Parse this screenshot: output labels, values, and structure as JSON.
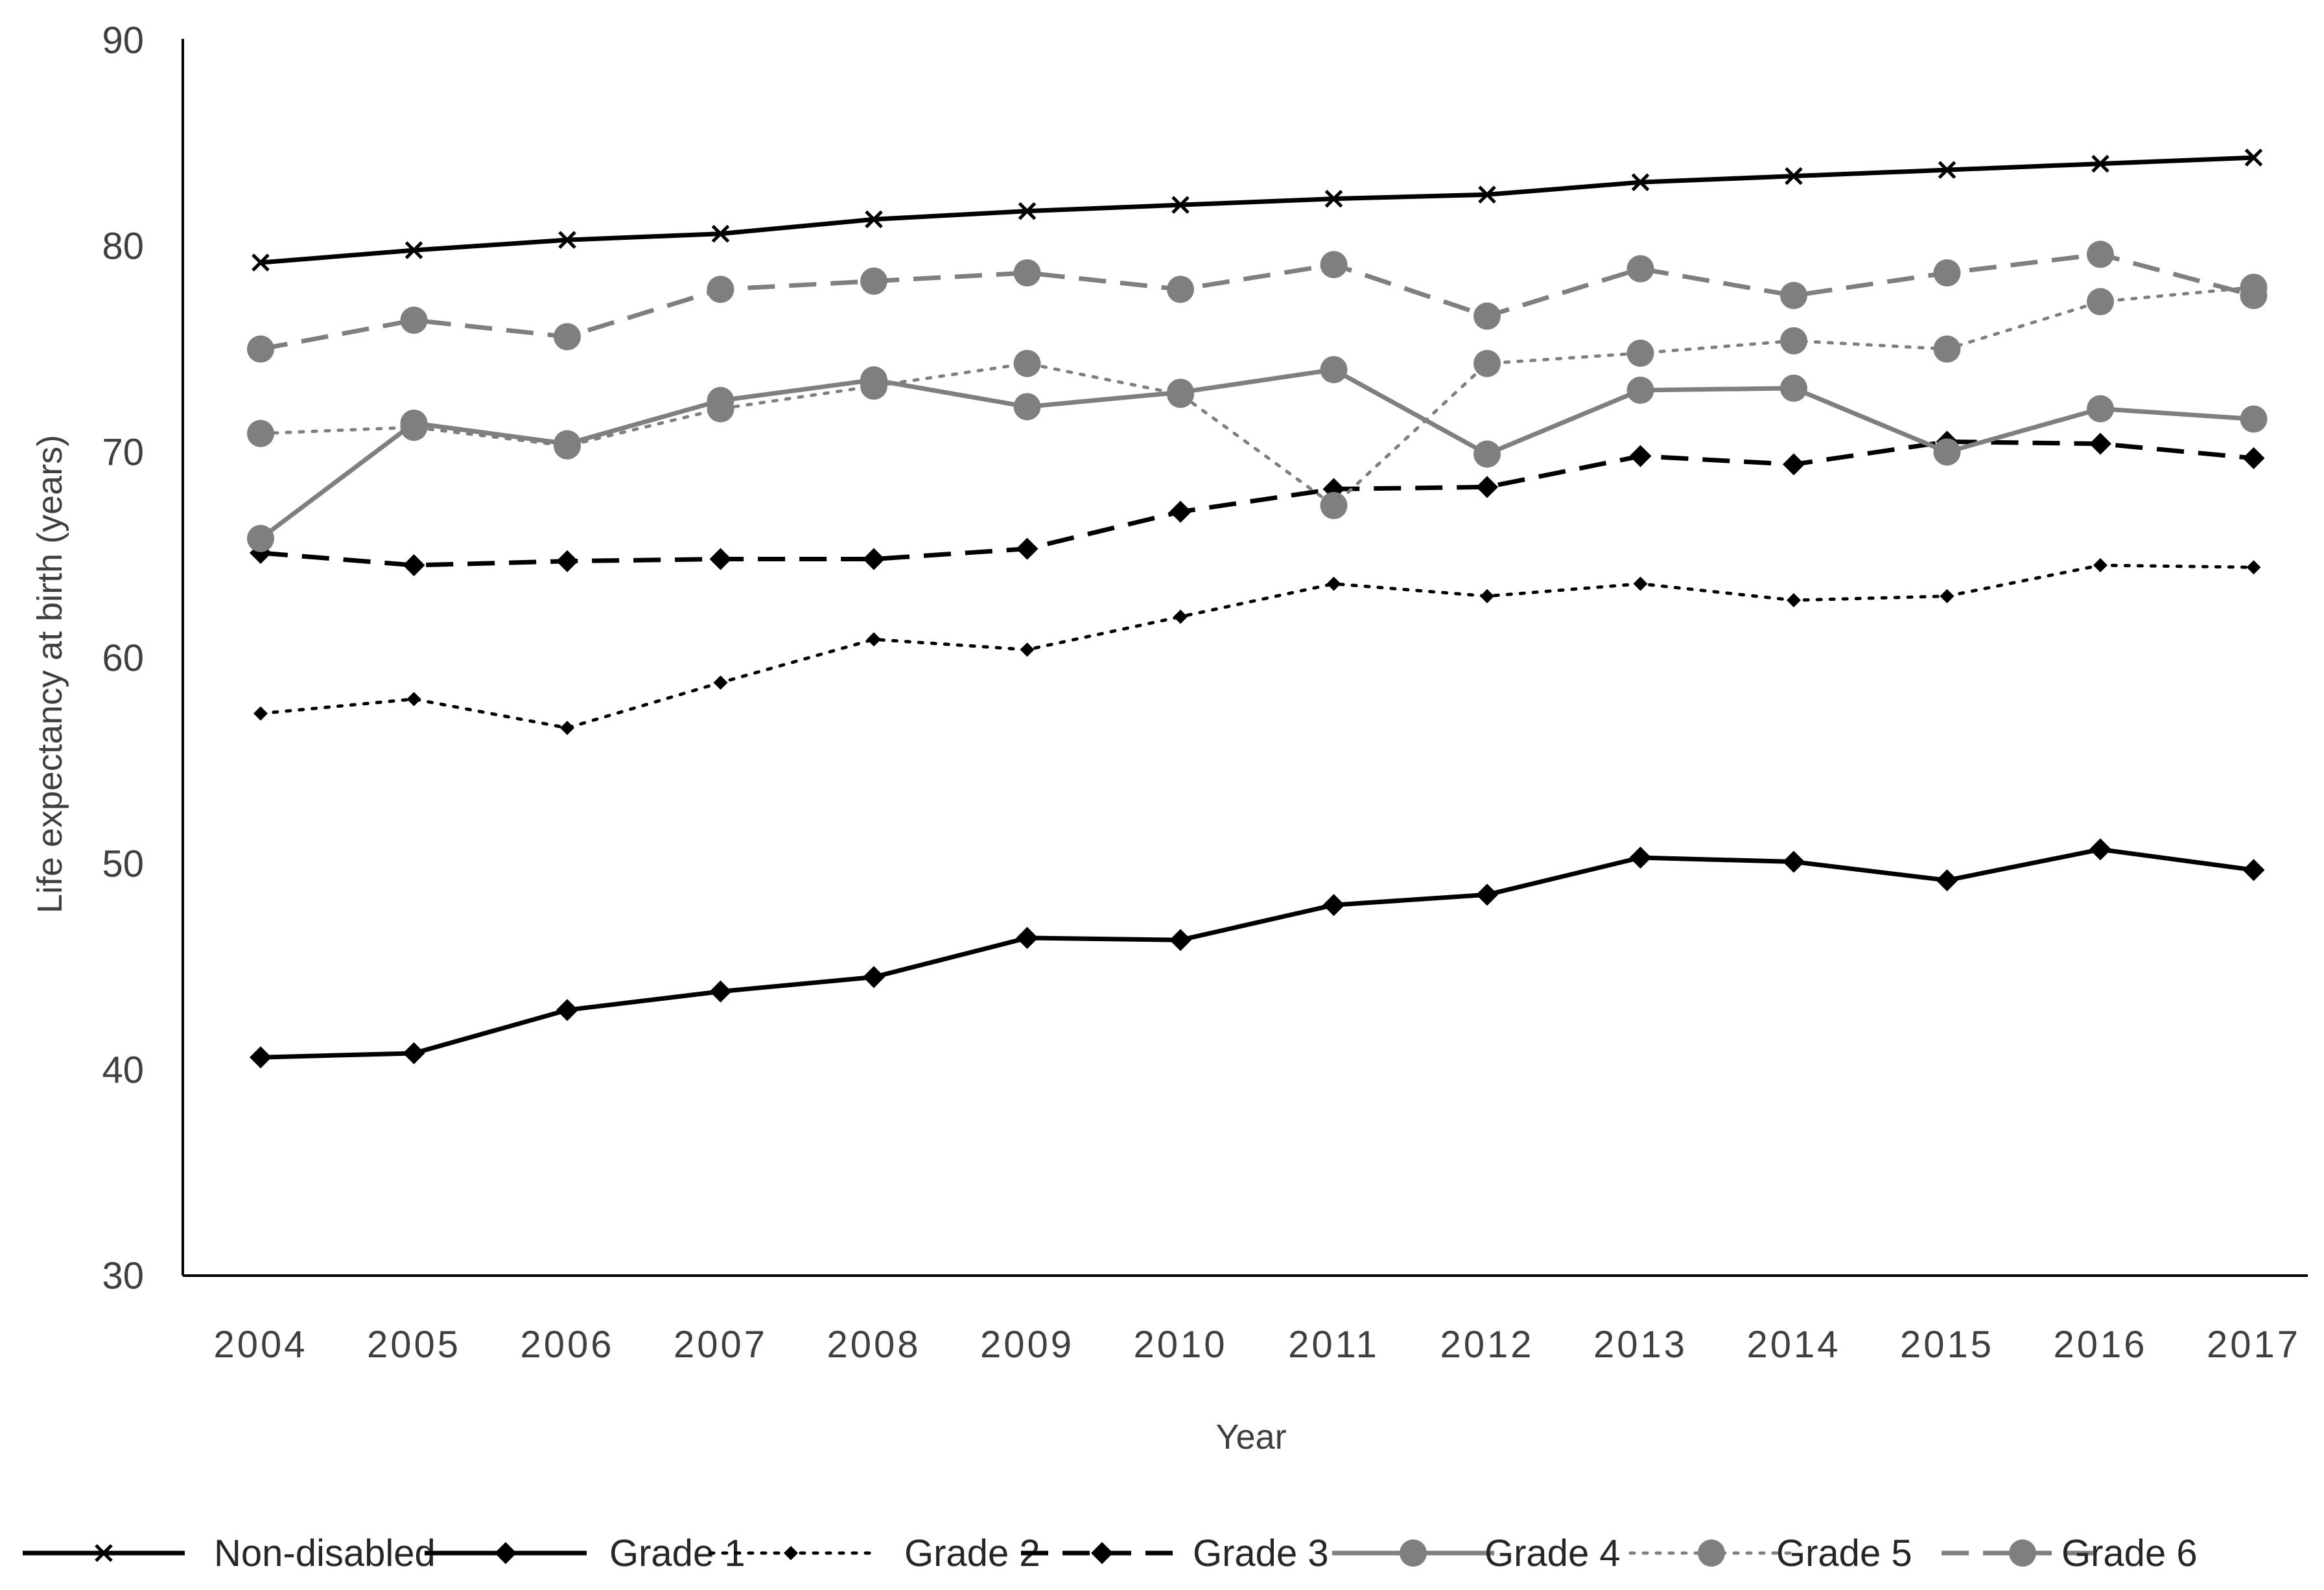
{
  "chart_data": {
    "type": "line",
    "title": "",
    "xlabel": "Year",
    "ylabel": "Life expectancy at birth (years)",
    "ylim": [
      30,
      90
    ],
    "yticks": [
      "30",
      "40",
      "50",
      "60",
      "70",
      "80",
      "90"
    ],
    "categories": [
      "2004",
      "2005",
      "2006",
      "2007",
      "2008",
      "2009",
      "2010",
      "2011",
      "2012",
      "2013",
      "2014",
      "2015",
      "2016",
      "2017"
    ],
    "legend_position": "bottom",
    "grid": false,
    "series": [
      {
        "name": "Non-disabled",
        "color": "#000000",
        "dash": "solid",
        "marker": "x",
        "values": [
          79.2,
          79.8,
          80.3,
          80.6,
          81.3,
          81.7,
          82.0,
          82.3,
          82.5,
          83.1,
          83.4,
          83.7,
          84.0,
          84.3
        ]
      },
      {
        "name": "Grade 1",
        "color": "#000000",
        "dash": "solid",
        "marker": "diamond",
        "values": [
          40.6,
          40.8,
          42.9,
          43.8,
          44.5,
          46.4,
          46.3,
          48.0,
          48.5,
          50.3,
          50.1,
          49.2,
          50.7,
          49.7
        ]
      },
      {
        "name": "Grade 2",
        "color": "#000000",
        "dash": "dotted",
        "marker": "small-diamond",
        "values": [
          57.3,
          58.0,
          56.6,
          58.8,
          60.9,
          60.4,
          62.0,
          63.6,
          63.0,
          63.6,
          62.8,
          63.0,
          64.5,
          64.4
        ]
      },
      {
        "name": "Grade 3",
        "color": "#000000",
        "dash": "dashed",
        "marker": "diamond",
        "values": [
          65.1,
          64.5,
          64.7,
          64.8,
          64.8,
          65.3,
          67.1,
          68.2,
          68.3,
          69.8,
          69.4,
          70.5,
          70.4,
          69.7
        ]
      },
      {
        "name": "Grade 4",
        "color": "#7f7f7f",
        "dash": "solid",
        "marker": "circle",
        "values": [
          65.8,
          71.4,
          70.4,
          72.5,
          73.5,
          72.2,
          72.9,
          74.0,
          69.9,
          73.0,
          73.1,
          70.0,
          72.1,
          71.6
        ]
      },
      {
        "name": "Grade 5",
        "color": "#7f7f7f",
        "dash": "dotted",
        "marker": "circle",
        "values": [
          70.9,
          71.2,
          70.3,
          72.1,
          73.2,
          74.3,
          72.8,
          67.4,
          74.3,
          74.8,
          75.4,
          75.0,
          77.3,
          78.0
        ]
      },
      {
        "name": "Grade 6",
        "color": "#7f7f7f",
        "dash": "dashed",
        "marker": "circle",
        "values": [
          75.0,
          76.4,
          75.6,
          77.9,
          78.3,
          78.7,
          77.9,
          79.1,
          76.6,
          78.9,
          77.6,
          78.7,
          79.6,
          77.6
        ]
      }
    ]
  }
}
